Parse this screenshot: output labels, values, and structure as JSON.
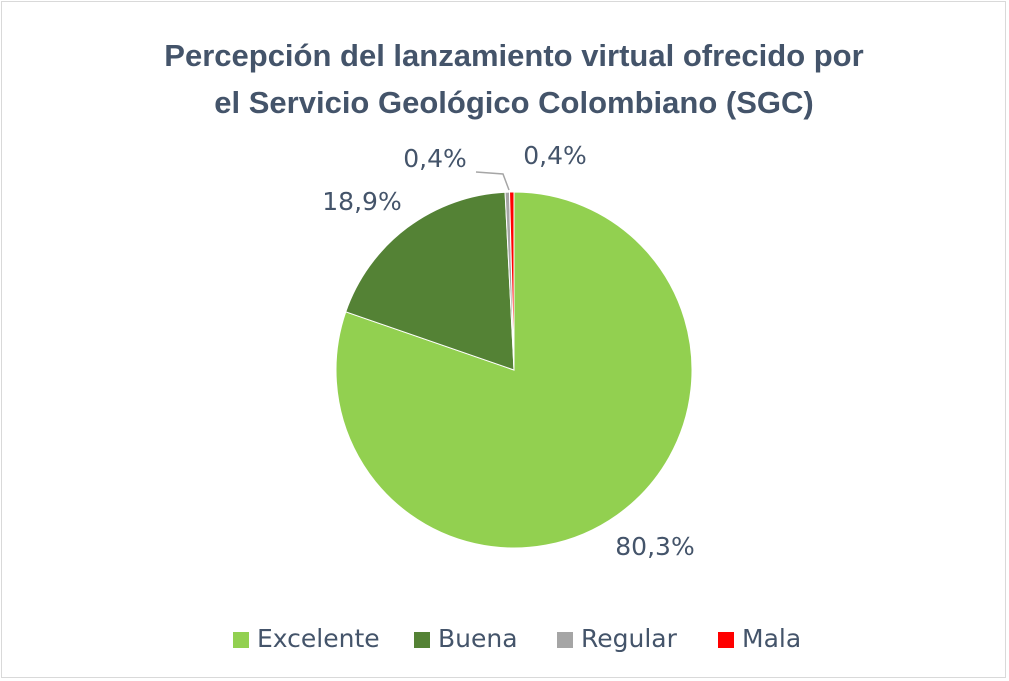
{
  "chart_data": {
    "type": "pie",
    "title": [
      "Percepción del lanzamiento virtual ofrecido por",
      "el Servicio Geológico Colombiano (SGC)"
    ],
    "categories": [
      "Excelente",
      "Buena",
      "Regular",
      "Mala"
    ],
    "values": [
      80.3,
      18.9,
      0.4,
      0.4
    ],
    "value_labels": [
      "80,3%",
      "18,9%",
      "0,4%",
      "0,4%"
    ],
    "colors": [
      "#92d050",
      "#548235",
      "#a5a5a5",
      "#ff0000"
    ],
    "legend": "bottom"
  }
}
